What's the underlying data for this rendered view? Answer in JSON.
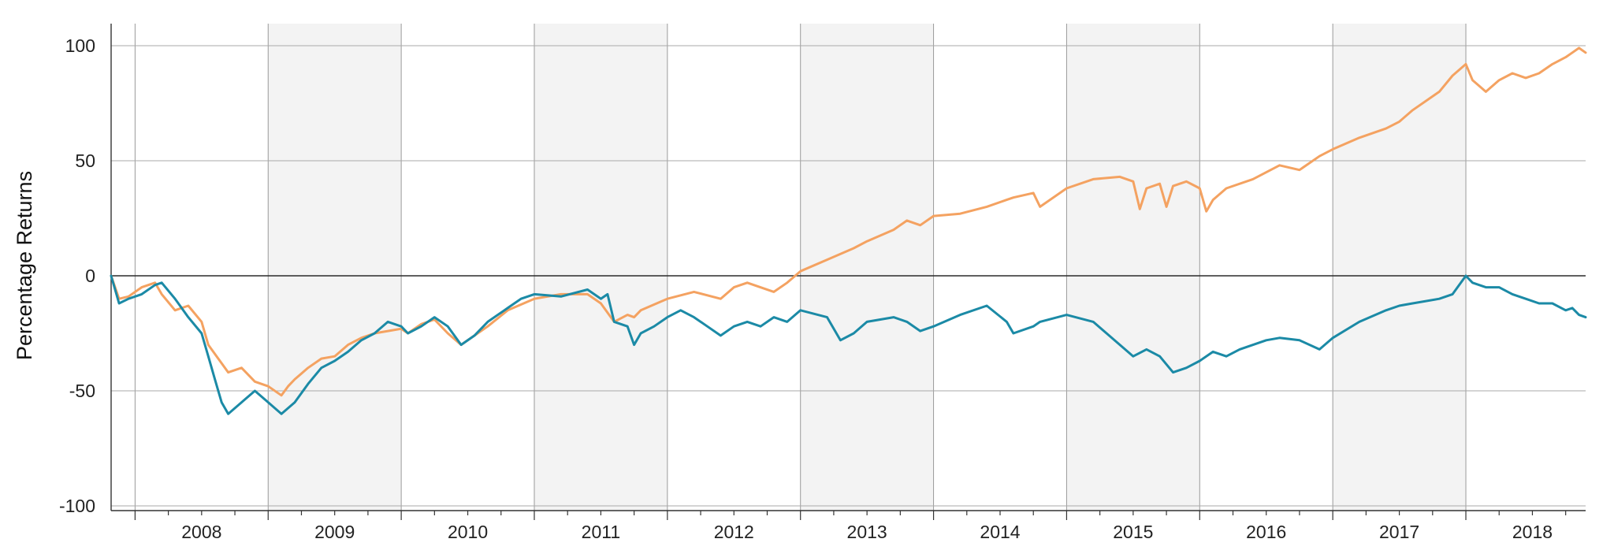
{
  "chart_data": {
    "type": "line",
    "ylabel": "Percentage Returns",
    "xlabel": "",
    "title": "",
    "ylim": [
      -100,
      100
    ],
    "y_ticks": [
      100,
      50,
      0,
      -50,
      -100
    ],
    "y_tick_labels": [
      "100",
      "50",
      "0",
      "-50",
      "-100"
    ],
    "xlim": [
      2007.82,
      2018.9
    ],
    "x_ticks": [
      "2008",
      "2009",
      "2010",
      "2011",
      "2012",
      "2013",
      "2014",
      "2015",
      "2016",
      "2017",
      "2018"
    ],
    "shaded_years": [
      "2009",
      "2011",
      "2013",
      "2015",
      "2017"
    ],
    "grid": true,
    "legend": "none",
    "series": [
      {
        "color": "#f4a261",
        "x": [
          2007.82,
          2007.88,
          2007.95,
          2008.05,
          2008.15,
          2008.2,
          2008.3,
          2008.4,
          2008.5,
          2008.55,
          2008.65,
          2008.7,
          2008.8,
          2008.9,
          2009.0,
          2009.1,
          2009.15,
          2009.2,
          2009.3,
          2009.4,
          2009.5,
          2009.6,
          2009.7,
          2009.8,
          2009.9,
          2010.0,
          2010.05,
          2010.15,
          2010.25,
          2010.35,
          2010.45,
          2010.55,
          2010.65,
          2010.8,
          2011.0,
          2011.2,
          2011.4,
          2011.5,
          2011.6,
          2011.7,
          2011.75,
          2011.8,
          2012.0,
          2012.2,
          2012.4,
          2012.5,
          2012.6,
          2012.8,
          2012.9,
          2013.0,
          2013.2,
          2013.4,
          2013.5,
          2013.7,
          2013.8,
          2013.9,
          2014.0,
          2014.2,
          2014.4,
          2014.55,
          2014.6,
          2014.75,
          2014.8,
          2015.0,
          2015.2,
          2015.4,
          2015.5,
          2015.55,
          2015.6,
          2015.7,
          2015.75,
          2015.8,
          2015.9,
          2016.0,
          2016.05,
          2016.1,
          2016.2,
          2016.4,
          2016.6,
          2016.75,
          2016.9,
          2017.0,
          2017.2,
          2017.4,
          2017.5,
          2017.6,
          2017.8,
          2017.9,
          2018.0,
          2018.05,
          2018.15,
          2018.25,
          2018.35,
          2018.45,
          2018.55,
          2018.65,
          2018.75,
          2018.8,
          2018.85,
          2018.9
        ],
        "y": [
          0,
          -10,
          -9,
          -5,
          -3,
          -8,
          -15,
          -13,
          -20,
          -30,
          -38,
          -42,
          -40,
          -46,
          -48,
          -52,
          -48,
          -45,
          -40,
          -36,
          -35,
          -30,
          -27,
          -25,
          -24,
          -23,
          -25,
          -21,
          -19,
          -25,
          -30,
          -26,
          -22,
          -15,
          -10,
          -8,
          -8,
          -12,
          -20,
          -17,
          -18,
          -15,
          -10,
          -7,
          -10,
          -5,
          -3,
          -7,
          -3,
          2,
          7,
          12,
          15,
          20,
          24,
          22,
          26,
          27,
          30,
          33,
          34,
          36,
          30,
          38,
          42,
          43,
          41,
          29,
          38,
          40,
          30,
          39,
          41,
          38,
          28,
          33,
          38,
          42,
          48,
          46,
          52,
          55,
          60,
          64,
          67,
          72,
          80,
          87,
          92,
          85,
          80,
          85,
          88,
          86,
          88,
          92,
          95,
          97,
          99,
          97
        ]
      },
      {
        "color": "#1b8aa6",
        "x": [
          2007.82,
          2007.88,
          2007.95,
          2008.05,
          2008.15,
          2008.2,
          2008.3,
          2008.4,
          2008.5,
          2008.55,
          2008.6,
          2008.65,
          2008.7,
          2008.8,
          2008.9,
          2009.0,
          2009.1,
          2009.2,
          2009.3,
          2009.4,
          2009.5,
          2009.6,
          2009.7,
          2009.8,
          2009.9,
          2010.0,
          2010.05,
          2010.15,
          2010.25,
          2010.35,
          2010.45,
          2010.55,
          2010.65,
          2010.8,
          2010.9,
          2011.0,
          2011.2,
          2011.4,
          2011.5,
          2011.55,
          2011.6,
          2011.7,
          2011.75,
          2011.8,
          2011.9,
          2012.0,
          2012.1,
          2012.2,
          2012.3,
          2012.4,
          2012.5,
          2012.6,
          2012.7,
          2012.8,
          2012.9,
          2013.0,
          2013.2,
          2013.3,
          2013.4,
          2013.5,
          2013.7,
          2013.8,
          2013.9,
          2014.0,
          2014.2,
          2014.4,
          2014.55,
          2014.6,
          2014.75,
          2014.8,
          2015.0,
          2015.2,
          2015.3,
          2015.5,
          2015.6,
          2015.7,
          2015.8,
          2015.9,
          2016.0,
          2016.1,
          2016.2,
          2016.3,
          2016.5,
          2016.6,
          2016.75,
          2016.9,
          2017.0,
          2017.2,
          2017.4,
          2017.5,
          2017.6,
          2017.8,
          2017.9,
          2018.0,
          2018.05,
          2018.15,
          2018.25,
          2018.35,
          2018.45,
          2018.55,
          2018.65,
          2018.75,
          2018.8,
          2018.85,
          2018.9
        ],
        "y": [
          0,
          -12,
          -10,
          -8,
          -4,
          -3,
          -10,
          -18,
          -25,
          -35,
          -45,
          -55,
          -60,
          -55,
          -50,
          -55,
          -60,
          -55,
          -47,
          -40,
          -37,
          -33,
          -28,
          -25,
          -20,
          -22,
          -25,
          -22,
          -18,
          -22,
          -30,
          -26,
          -20,
          -14,
          -10,
          -8,
          -9,
          -6,
          -10,
          -8,
          -20,
          -22,
          -30,
          -25,
          -22,
          -18,
          -15,
          -18,
          -22,
          -26,
          -22,
          -20,
          -22,
          -18,
          -20,
          -15,
          -18,
          -28,
          -25,
          -20,
          -18,
          -20,
          -24,
          -22,
          -17,
          -13,
          -20,
          -25,
          -22,
          -20,
          -17,
          -20,
          -25,
          -35,
          -32,
          -35,
          -42,
          -40,
          -37,
          -33,
          -35,
          -32,
          -28,
          -27,
          -28,
          -32,
          -27,
          -20,
          -15,
          -13,
          -12,
          -10,
          -8,
          0,
          -3,
          -5,
          -5,
          -8,
          -10,
          -12,
          -12,
          -15,
          -14,
          -17,
          -18
        ]
      }
    ]
  }
}
